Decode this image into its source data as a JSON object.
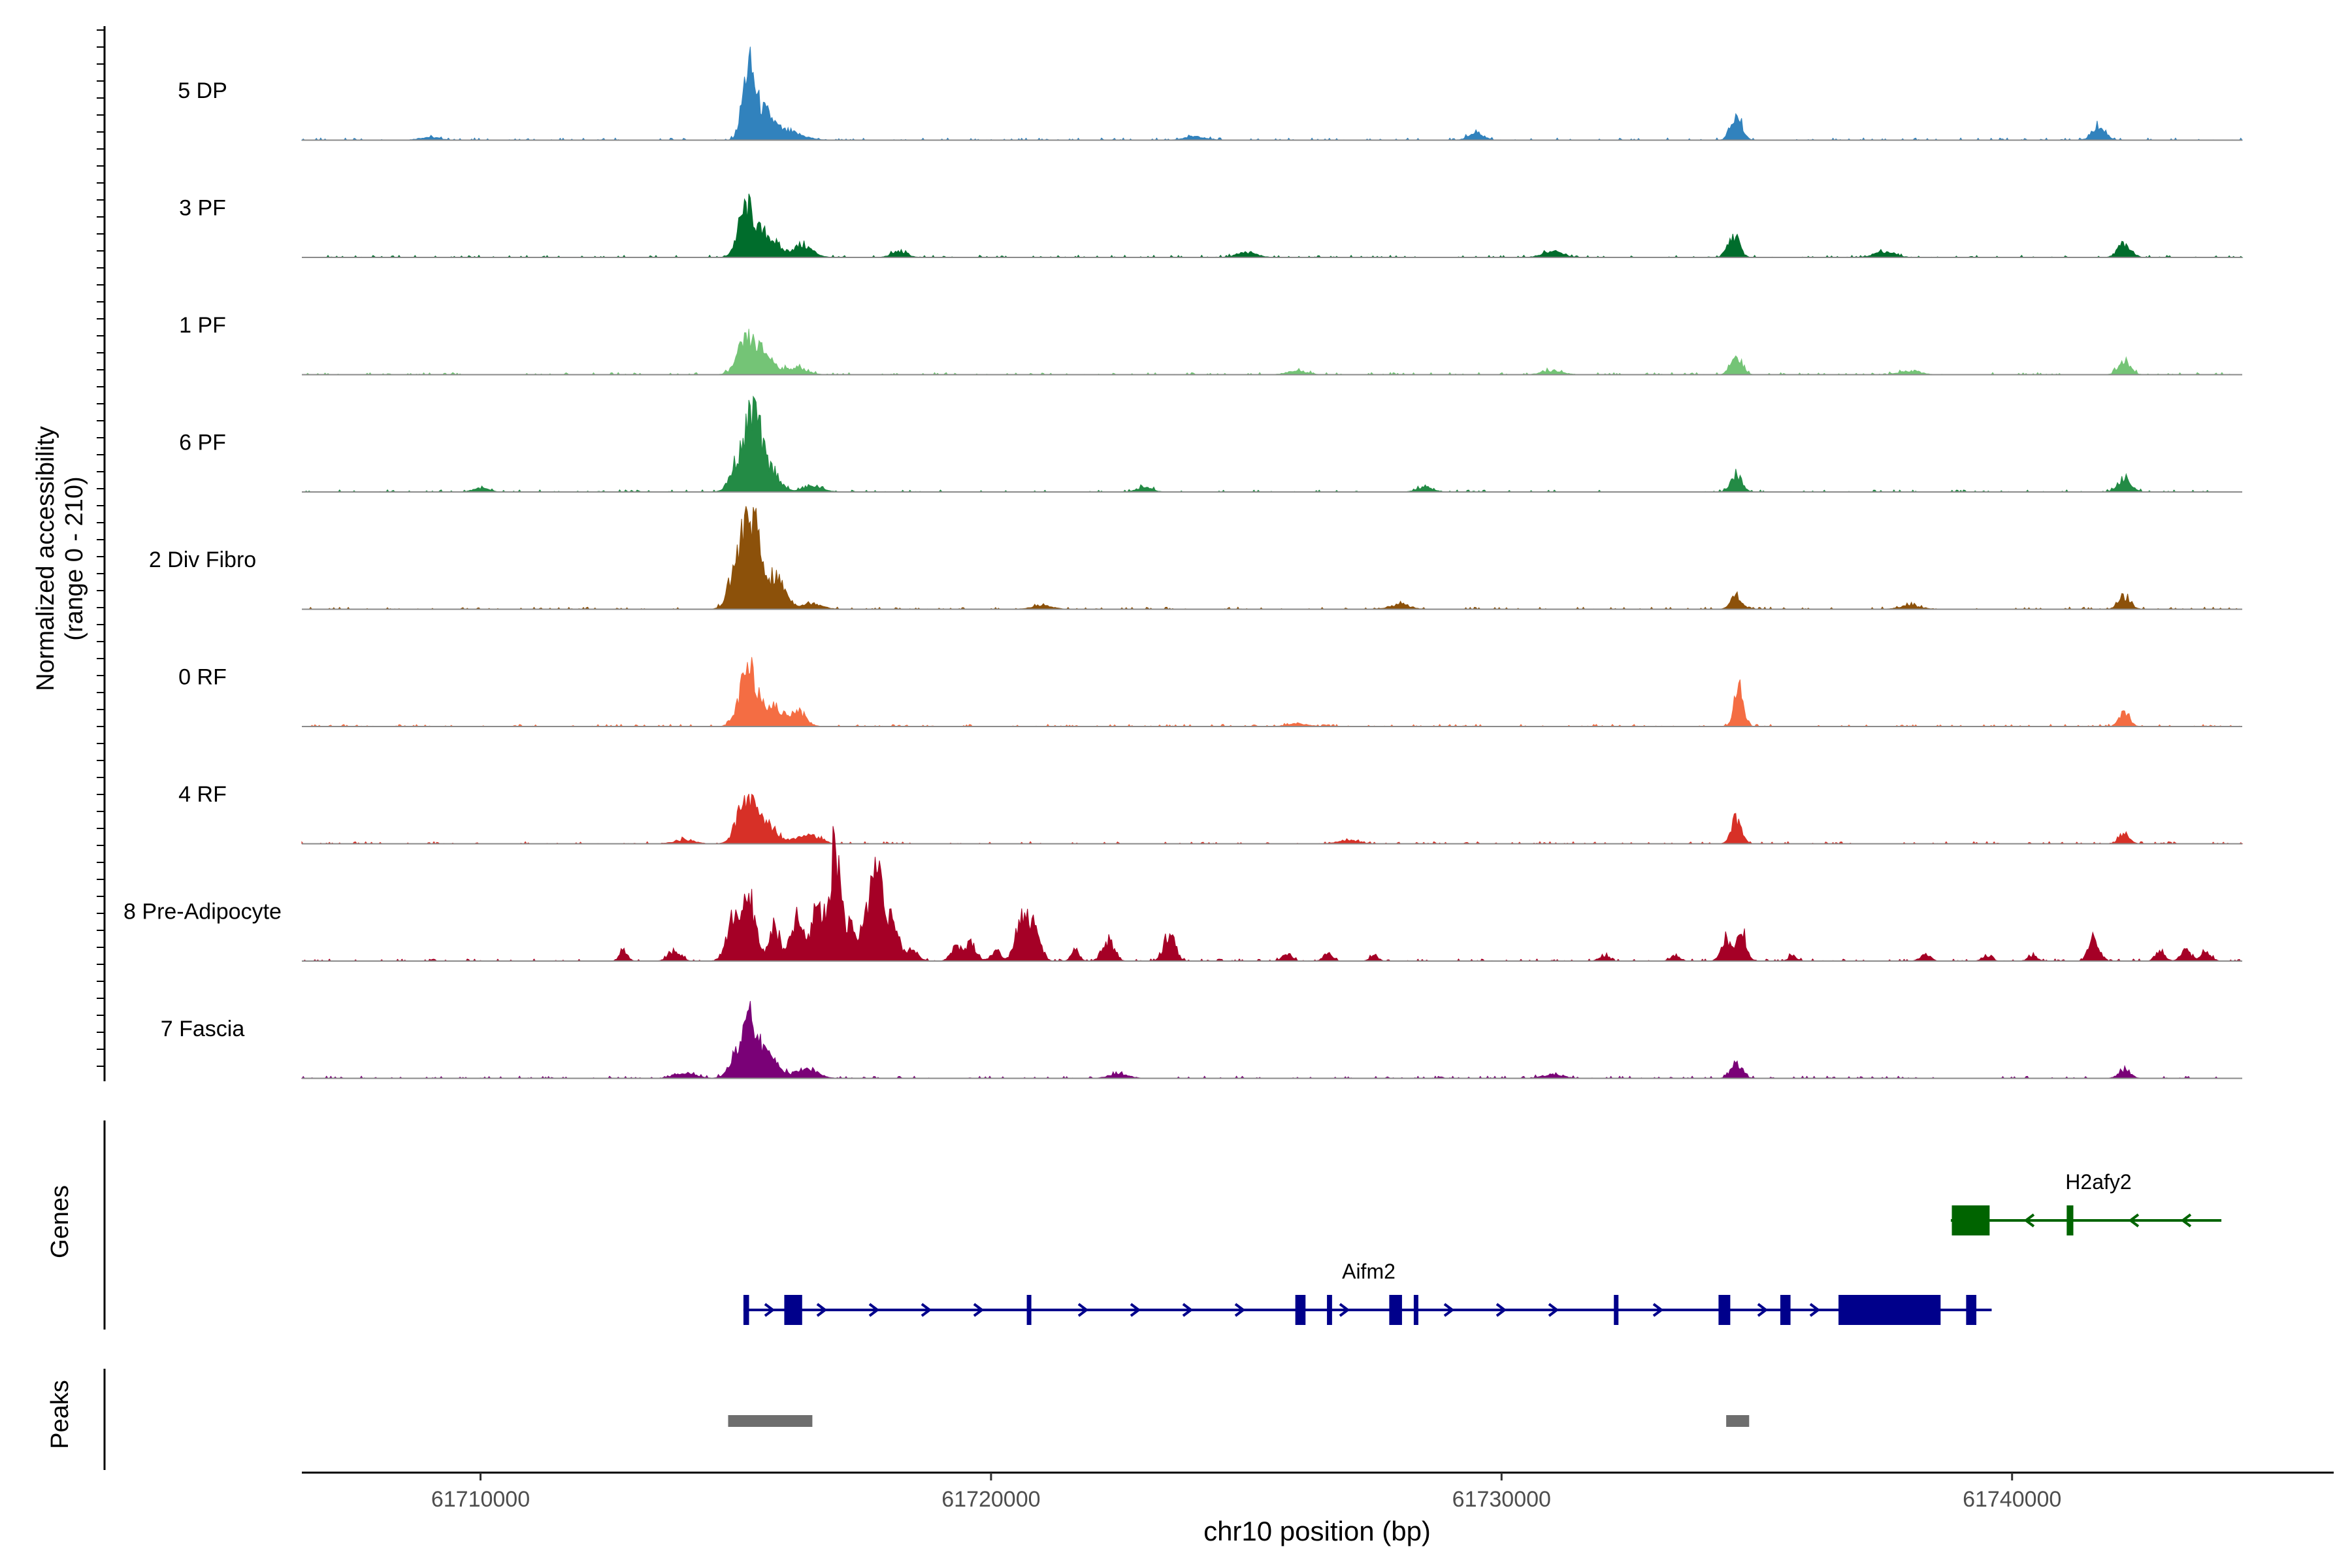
{
  "chart_data": {
    "type": "area",
    "title": "",
    "ylabel": "Normalized accessibility",
    "ylabel_range": "(range 0 - 210)",
    "xlabel": "chr10 position (bp)",
    "xlim": [
      61706500,
      61746300
    ],
    "x_ticks": [
      61710000,
      61720000,
      61730000,
      61740000
    ],
    "x_tick_labels": [
      "61710000",
      "61720000",
      "61730000",
      "61740000"
    ],
    "y_range": [
      0,
      210
    ],
    "tracks": [
      {
        "name": "5 DP",
        "color": "#3182BD",
        "peaks": [
          [
            61715250,
            0.68,
            120
          ],
          [
            61715550,
            0.25,
            180
          ],
          [
            61716000,
            0.08,
            300
          ],
          [
            61729500,
            0.07,
            150
          ],
          [
            61734600,
            0.24,
            110
          ],
          [
            61741700,
            0.14,
            130
          ],
          [
            61709000,
            0.03,
            200
          ],
          [
            61724000,
            0.04,
            200
          ]
        ]
      },
      {
        "name": "3 PF",
        "color": "#006D2C",
        "peaks": [
          [
            61715200,
            0.48,
            150
          ],
          [
            61715600,
            0.22,
            200
          ],
          [
            61716300,
            0.12,
            200
          ],
          [
            61718200,
            0.06,
            150
          ],
          [
            61734550,
            0.22,
            110
          ],
          [
            61742200,
            0.14,
            130
          ],
          [
            61725000,
            0.05,
            200
          ],
          [
            61731000,
            0.06,
            200
          ],
          [
            61737500,
            0.06,
            200
          ]
        ]
      },
      {
        "name": "1 PF",
        "color": "#74C476",
        "peaks": [
          [
            61715200,
            0.3,
            170
          ],
          [
            61715550,
            0.2,
            200
          ],
          [
            61716200,
            0.07,
            200
          ],
          [
            61734600,
            0.18,
            110
          ],
          [
            61742200,
            0.14,
            120
          ],
          [
            61726000,
            0.04,
            200
          ],
          [
            61731000,
            0.04,
            200
          ],
          [
            61738000,
            0.04,
            200
          ]
        ]
      },
      {
        "name": "6 PF",
        "color": "#238B45",
        "peaks": [
          [
            61715350,
            0.78,
            140
          ],
          [
            61715050,
            0.3,
            150
          ],
          [
            61715700,
            0.22,
            160
          ],
          [
            61716500,
            0.06,
            200
          ],
          [
            61734600,
            0.17,
            110
          ],
          [
            61742200,
            0.14,
            130
          ],
          [
            61723000,
            0.05,
            150
          ],
          [
            61728500,
            0.05,
            150
          ],
          [
            61710000,
            0.04,
            150
          ]
        ]
      },
      {
        "name": "2 Div Fibro",
        "color": "#8C510A",
        "peaks": [
          [
            61715300,
            0.9,
            170
          ],
          [
            61715000,
            0.32,
            150
          ],
          [
            61715800,
            0.3,
            180
          ],
          [
            61716500,
            0.06,
            200
          ],
          [
            61734600,
            0.14,
            110
          ],
          [
            61742200,
            0.12,
            120
          ],
          [
            61721000,
            0.04,
            200
          ],
          [
            61728000,
            0.05,
            200
          ],
          [
            61738000,
            0.04,
            200
          ]
        ]
      },
      {
        "name": "0 RF",
        "color": "#F46D43",
        "peaks": [
          [
            61715250,
            0.55,
            170
          ],
          [
            61715700,
            0.2,
            180
          ],
          [
            61716200,
            0.16,
            160
          ],
          [
            61734650,
            0.38,
            90
          ],
          [
            61742200,
            0.15,
            100
          ],
          [
            61726000,
            0.03,
            200
          ]
        ]
      },
      {
        "name": "4 RF",
        "color": "#D73027",
        "peaks": [
          [
            61715200,
            0.44,
            170
          ],
          [
            61715600,
            0.2,
            200
          ],
          [
            61716400,
            0.1,
            220
          ],
          [
            61734600,
            0.25,
            100
          ],
          [
            61742200,
            0.1,
            100
          ],
          [
            61714000,
            0.04,
            200
          ],
          [
            61727000,
            0.04,
            200
          ]
        ]
      },
      {
        "name": "8 Pre-Adipocyte",
        "color": "#A50026",
        "peaks": [
          [
            61712800,
            0.1,
            80
          ],
          [
            61713800,
            0.1,
            120
          ],
          [
            61715000,
            0.48,
            150
          ],
          [
            61715300,
            0.52,
            110
          ],
          [
            61715750,
            0.34,
            110
          ],
          [
            61716200,
            0.42,
            120
          ],
          [
            61716600,
            0.6,
            110
          ],
          [
            61716900,
            0.72,
            90
          ],
          [
            61717000,
            0.6,
            100
          ],
          [
            61717250,
            0.3,
            120
          ],
          [
            61717600,
            0.55,
            110
          ],
          [
            61717800,
            0.82,
            100
          ],
          [
            61718050,
            0.4,
            120
          ],
          [
            61718450,
            0.12,
            120
          ],
          [
            61719300,
            0.14,
            100
          ],
          [
            61719600,
            0.18,
            110
          ],
          [
            61720100,
            0.1,
            100
          ],
          [
            61720600,
            0.46,
            120
          ],
          [
            61720850,
            0.3,
            120
          ],
          [
            61721650,
            0.1,
            80
          ],
          [
            61722300,
            0.2,
            110
          ],
          [
            61723500,
            0.28,
            110
          ],
          [
            61725800,
            0.08,
            90
          ],
          [
            61726600,
            0.08,
            90
          ],
          [
            61727500,
            0.06,
            80
          ],
          [
            61732000,
            0.06,
            90
          ],
          [
            61733400,
            0.06,
            90
          ],
          [
            61734400,
            0.22,
            100
          ],
          [
            61734700,
            0.3,
            90
          ],
          [
            61735700,
            0.06,
            80
          ],
          [
            61738300,
            0.07,
            100
          ],
          [
            61739500,
            0.05,
            90
          ],
          [
            61740400,
            0.05,
            90
          ],
          [
            61741600,
            0.26,
            100
          ],
          [
            61742900,
            0.1,
            90
          ],
          [
            61743400,
            0.12,
            100
          ],
          [
            61743800,
            0.09,
            100
          ]
        ]
      },
      {
        "name": "7 Fascia",
        "color": "#7A0177",
        "peaks": [
          [
            61715300,
            0.56,
            150
          ],
          [
            61715000,
            0.18,
            150
          ],
          [
            61715700,
            0.2,
            180
          ],
          [
            61716400,
            0.1,
            200
          ],
          [
            61734600,
            0.16,
            110
          ],
          [
            61742200,
            0.08,
            120
          ],
          [
            61714000,
            0.06,
            200
          ],
          [
            61722500,
            0.04,
            200
          ],
          [
            61731000,
            0.04,
            200
          ]
        ]
      }
    ],
    "genes": [
      {
        "name": "Aifm2",
        "color": "#00008B",
        "start": 61715150,
        "end": 61739600,
        "strand": "+",
        "exons": [
          [
            61715150,
            61715260
          ],
          [
            61715950,
            61716300
          ],
          [
            61720700,
            61720780
          ],
          [
            61725960,
            61726160
          ],
          [
            61726580,
            61726680
          ],
          [
            61727800,
            61728050
          ],
          [
            61728280,
            61728370
          ],
          [
            61732200,
            61732290
          ],
          [
            61734250,
            61734480
          ],
          [
            61735460,
            61735660
          ],
          [
            61736600,
            61738600
          ],
          [
            61739100,
            61739300
          ]
        ]
      },
      {
        "name": "H2afy2",
        "color": "#006400",
        "start": 61738800,
        "end": 61744100,
        "strand": "-",
        "exons": [
          [
            61738820,
            61739560
          ],
          [
            61741070,
            61741200
          ]
        ]
      }
    ],
    "peaks_track": [
      [
        61714850,
        61716500
      ],
      [
        61734400,
        61734850
      ]
    ],
    "panel_labels": {
      "genes": "Genes",
      "peaks": "Peaks"
    }
  }
}
